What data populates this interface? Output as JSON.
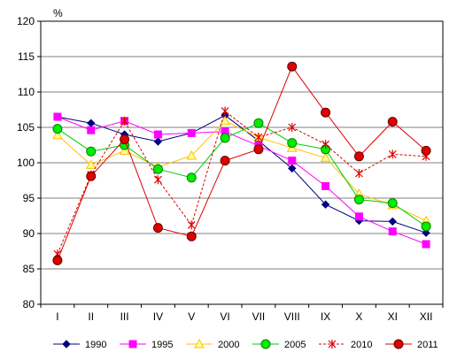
{
  "chart_data": {
    "type": "line",
    "ylabel": "%",
    "ylim": [
      80,
      120
    ],
    "yticks": [
      80,
      85,
      90,
      95,
      100,
      105,
      110,
      115,
      120
    ],
    "categories": [
      "I",
      "II",
      "III",
      "IV",
      "V",
      "VI",
      "VII",
      "VIII",
      "IX",
      "X",
      "XI",
      "XII"
    ],
    "grid": true,
    "legend_position": "bottom",
    "series": [
      {
        "name": "1990",
        "color": "#000080",
        "marker": "diamond",
        "dash": false,
        "values": [
          106.5,
          105.6,
          104.0,
          103.0,
          104.2,
          106.7,
          103.1,
          99.2,
          94.1,
          91.8,
          91.7,
          90.1
        ]
      },
      {
        "name": "1995",
        "color": "#ff00ff",
        "marker": "square",
        "dash": false,
        "values": [
          106.5,
          104.6,
          105.9,
          104.0,
          104.2,
          104.4,
          102.4,
          100.3,
          96.7,
          92.4,
          90.3,
          88.5
        ]
      },
      {
        "name": "2000",
        "color": "#ffc000",
        "marker": "triangle",
        "dash": false,
        "values": [
          103.9,
          99.7,
          101.7,
          99.4,
          101.0,
          105.9,
          103.6,
          102.1,
          100.7,
          95.6,
          94.0,
          91.8
        ]
      },
      {
        "name": "2005",
        "color": "#00cc00",
        "marker": "circle",
        "dash": false,
        "values": [
          104.8,
          101.6,
          102.5,
          99.1,
          97.9,
          103.5,
          105.6,
          102.8,
          101.9,
          94.8,
          94.3,
          91.0
        ]
      },
      {
        "name": "2010",
        "color": "#e00000",
        "marker": "star",
        "dash": true,
        "values": [
          87.1,
          98.3,
          105.9,
          97.6,
          91.2,
          107.3,
          103.6,
          105.0,
          102.6,
          98.5,
          101.2,
          100.9
        ]
      },
      {
        "name": "2011",
        "color": "#e00000",
        "marker": "circle-red",
        "dash": false,
        "values": [
          86.2,
          98.1,
          103.3,
          90.8,
          89.6,
          100.3,
          101.9,
          113.6,
          107.1,
          100.9,
          105.8,
          101.7
        ]
      }
    ]
  }
}
